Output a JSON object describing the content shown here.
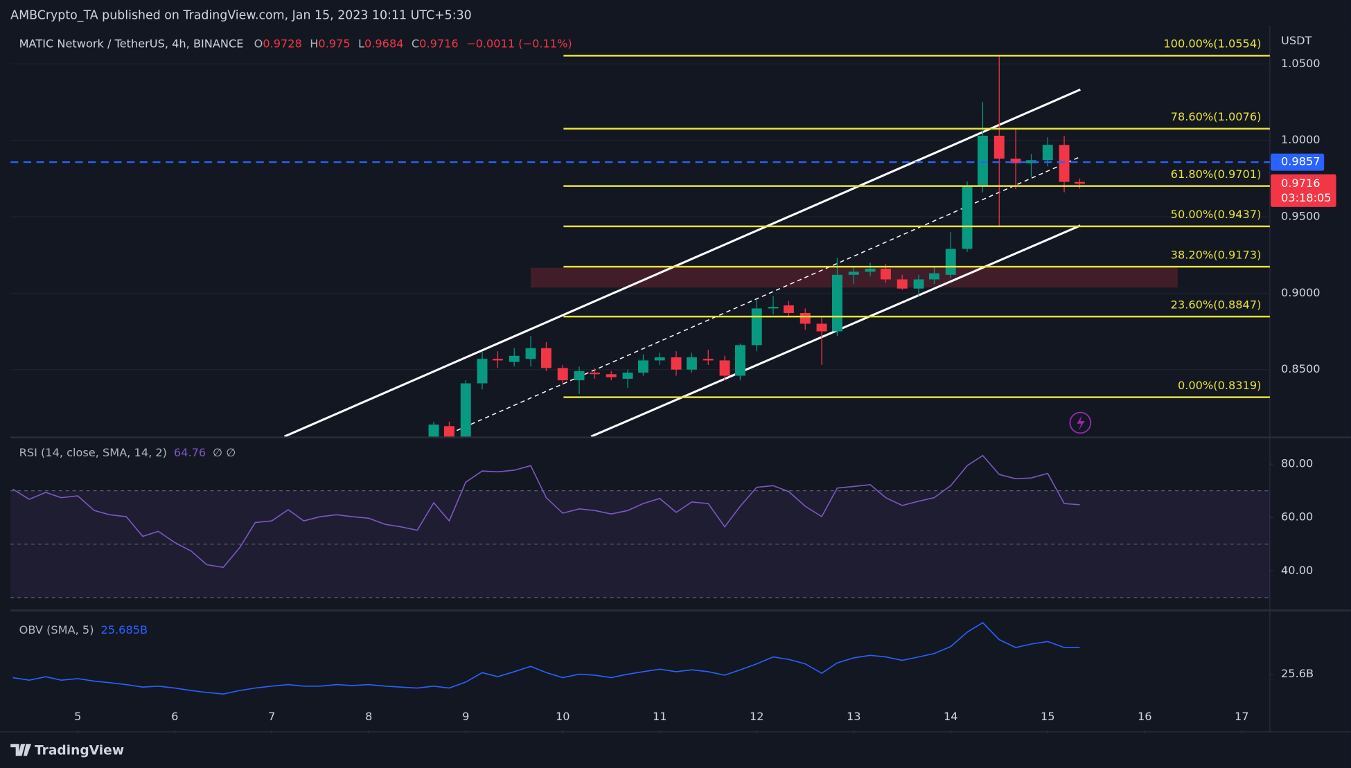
{
  "header": "AMBCrypto_TA published on TradingView.com, Jan 15, 2023 10:11 UTC+5:30",
  "footer": "TradingView",
  "chart_data": [
    {
      "type": "candlestick",
      "unit": "USDT",
      "legend": {
        "symbol": "MATIC Network / TetherUS, 4h, BINANCE",
        "open_label": "O",
        "open": 0.9728,
        "high_label": "H",
        "high": 0.975,
        "low_label": "L",
        "low": 0.9684,
        "close_label": "C",
        "close": 0.9716,
        "change": "−0.0011 (−0.11%)"
      },
      "x": [
        8.67,
        8.83,
        9,
        9.17,
        9.33,
        9.5,
        9.67,
        9.83,
        10,
        10.17,
        10.33,
        10.5,
        10.67,
        10.83,
        11,
        11.17,
        11.33,
        11.5,
        11.67,
        11.83,
        12,
        12.17,
        12.33,
        12.5,
        12.67,
        12.83,
        13,
        13.17,
        13.33,
        13.5,
        13.67,
        13.83,
        14,
        14.17,
        14.33,
        14.5,
        14.67,
        14.83,
        15,
        15.17,
        15.33
      ],
      "open": [
        0.806,
        0.813,
        0.806,
        0.841,
        0.857,
        0.855,
        0.857,
        0.864,
        0.851,
        0.843,
        0.848,
        0.847,
        0.844,
        0.848,
        0.856,
        0.858,
        0.85,
        0.857,
        0.856,
        0.846,
        0.866,
        0.89,
        0.892,
        0.887,
        0.88,
        0.875,
        0.912,
        0.914,
        0.916,
        0.909,
        0.903,
        0.909,
        0.912,
        0.929,
        0.97,
        1.003,
        0.988,
        0.985,
        0.987,
        0.997,
        0.9728
      ],
      "high": [
        0.816,
        0.816,
        0.843,
        0.862,
        0.862,
        0.864,
        0.872,
        0.868,
        0.853,
        0.852,
        0.851,
        0.849,
        0.85,
        0.86,
        0.861,
        0.862,
        0.861,
        0.863,
        0.859,
        0.867,
        0.896,
        0.898,
        0.895,
        0.89,
        0.884,
        0.923,
        0.917,
        0.92,
        0.919,
        0.912,
        0.912,
        0.917,
        0.94,
        0.973,
        1.025,
        1.0554,
        1.008,
        0.991,
        1.002,
        1.003,
        0.975
      ],
      "low": [
        0.804,
        0.804,
        0.805,
        0.837,
        0.851,
        0.852,
        0.852,
        0.849,
        0.84,
        0.834,
        0.844,
        0.843,
        0.838,
        0.846,
        0.853,
        0.846,
        0.848,
        0.853,
        0.843,
        0.843,
        0.862,
        0.886,
        0.884,
        0.876,
        0.853,
        0.872,
        0.906,
        0.911,
        0.907,
        0.902,
        0.898,
        0.906,
        0.91,
        0.927,
        0.966,
        0.944,
        0.968,
        0.976,
        0.983,
        0.966,
        0.9684
      ],
      "close": [
        0.814,
        0.806,
        0.841,
        0.857,
        0.856,
        0.859,
        0.864,
        0.851,
        0.843,
        0.849,
        0.847,
        0.845,
        0.848,
        0.856,
        0.858,
        0.85,
        0.858,
        0.856,
        0.846,
        0.866,
        0.89,
        0.891,
        0.887,
        0.88,
        0.875,
        0.912,
        0.914,
        0.916,
        0.909,
        0.903,
        0.909,
        0.913,
        0.929,
        0.97,
        1.003,
        0.988,
        0.985,
        0.987,
        0.997,
        0.9728,
        0.9716
      ],
      "up_color": "#089981",
      "down_color": "#f23645",
      "xlim": [
        4.307,
        17.29
      ],
      "xticks": [
        5,
        6,
        7,
        8,
        9,
        10,
        11,
        12,
        13,
        14,
        15,
        16,
        17
      ],
      "ylim": [
        0.8062,
        1.0749
      ],
      "yticks": [
        {
          "value": 1.05,
          "label": "1.0500"
        },
        {
          "value": 1.0,
          "label": "1.0000"
        },
        {
          "value": 0.95,
          "label": "0.9500"
        },
        {
          "value": 0.9,
          "label": "0.9000"
        },
        {
          "value": 0.85,
          "label": "0.8500"
        }
      ],
      "grid": true,
      "fib_levels": [
        {
          "value": 1.0554,
          "label": "100.00%(1.0554)"
        },
        {
          "value": 1.0076,
          "label": "78.60%(1.0076)"
        },
        {
          "value": 0.9701,
          "label": "61.80%(0.9701)"
        },
        {
          "value": 0.9437,
          "label": "50.00%(0.9437)"
        },
        {
          "value": 0.9173,
          "label": "38.20%(0.9173)"
        },
        {
          "value": 0.8847,
          "label": "23.60%(0.8847)"
        },
        {
          "value": 0.8319,
          "label": "0.00%(0.8319)"
        }
      ],
      "fib_color": "#e8e337",
      "price_line": 0.9857,
      "price_line_color": "#2962ff",
      "last_price": 0.9716,
      "countdown": "03:18:05"
    },
    {
      "type": "line",
      "title": "RSI (14, close, SMA, 14, 2)",
      "last": 64.76,
      "extra": "∅ ∅",
      "color": "#7e57c2",
      "x": [
        4.33,
        4.5,
        4.67,
        4.83,
        5,
        5.17,
        5.33,
        5.5,
        5.67,
        5.83,
        6,
        6.17,
        6.33,
        6.5,
        6.67,
        6.83,
        7,
        7.17,
        7.33,
        7.5,
        7.67,
        7.83,
        8,
        8.17,
        8.33,
        8.5,
        8.67,
        8.83,
        9,
        9.17,
        9.33,
        9.5,
        9.67,
        9.83,
        10,
        10.17,
        10.33,
        10.5,
        10.67,
        10.83,
        11,
        11.17,
        11.33,
        11.5,
        11.67,
        11.83,
        12,
        12.17,
        12.33,
        12.5,
        12.67,
        12.83,
        13,
        13.17,
        13.33,
        13.5,
        13.67,
        13.83,
        14,
        14.17,
        14.33,
        14.5,
        14.67,
        14.83,
        15,
        15.17,
        15.33
      ],
      "values": [
        70.6,
        66.8,
        69.4,
        67.4,
        68.1,
        62.6,
        61.0,
        60.3,
        52.9,
        54.8,
        50.6,
        47.4,
        42.3,
        41.3,
        48.7,
        58.1,
        58.7,
        62.9,
        58.7,
        60.3,
        61.0,
        60.3,
        59.7,
        57.4,
        56.5,
        55.2,
        65.5,
        58.7,
        73.2,
        77.4,
        77.1,
        77.7,
        79.4,
        67.4,
        61.6,
        63.2,
        62.6,
        61.3,
        62.6,
        65.2,
        67.1,
        61.9,
        65.8,
        65.2,
        56.5,
        64.2,
        71.3,
        71.9,
        69.7,
        64.2,
        60.3,
        71.0,
        71.6,
        72.3,
        67.4,
        64.5,
        66.1,
        67.4,
        71.9,
        79.4,
        83.2,
        76.1,
        74.5,
        74.8,
        76.5,
        65.2,
        64.76
      ],
      "ylim": [
        26.45,
        89.35
      ],
      "yticks": [
        {
          "value": 80,
          "label": "80.00"
        },
        {
          "value": 60,
          "label": "60.00"
        },
        {
          "value": 40,
          "label": "40.00"
        }
      ],
      "levels": [
        70,
        50,
        30
      ]
    },
    {
      "type": "line",
      "title": "OBV (SMA, 5)",
      "last": {
        "value": 25.685,
        "label": "25.685B"
      },
      "color": "#2962ff",
      "x": [
        4.33,
        4.5,
        4.67,
        4.83,
        5,
        5.17,
        5.33,
        5.5,
        5.67,
        5.83,
        6,
        6.17,
        6.33,
        6.5,
        6.67,
        6.83,
        7,
        7.17,
        7.33,
        7.5,
        7.67,
        7.83,
        8,
        8.17,
        8.33,
        8.5,
        8.67,
        8.83,
        9,
        9.17,
        9.33,
        9.5,
        9.67,
        9.83,
        10,
        10.17,
        10.33,
        10.5,
        10.67,
        10.83,
        11,
        11.17,
        11.33,
        11.5,
        11.67,
        11.83,
        12,
        12.17,
        12.33,
        12.5,
        12.67,
        12.83,
        13,
        13.17,
        13.33,
        13.5,
        13.67,
        13.83,
        14,
        14.17,
        14.33,
        14.5,
        14.67,
        14.83,
        15,
        15.17,
        15.33
      ],
      "values": [
        25.589,
        25.581,
        25.592,
        25.581,
        25.586,
        25.578,
        25.573,
        25.567,
        25.559,
        25.562,
        25.556,
        25.548,
        25.542,
        25.537,
        25.548,
        25.556,
        25.562,
        25.567,
        25.562,
        25.562,
        25.567,
        25.564,
        25.567,
        25.562,
        25.559,
        25.556,
        25.562,
        25.556,
        25.575,
        25.605,
        25.592,
        25.608,
        25.625,
        25.605,
        25.589,
        25.6,
        25.597,
        25.589,
        25.6,
        25.608,
        25.616,
        25.608,
        25.614,
        25.608,
        25.597,
        25.614,
        25.633,
        25.655,
        25.647,
        25.633,
        25.603,
        25.636,
        25.652,
        25.66,
        25.655,
        25.644,
        25.655,
        25.666,
        25.688,
        25.734,
        25.764,
        25.71,
        25.685,
        25.696,
        25.704,
        25.685,
        25.685
      ],
      "ylim": [
        25.422,
        25.792
      ],
      "yticks": [
        {
          "value": 25.6,
          "label": "25.6B"
        }
      ]
    }
  ]
}
